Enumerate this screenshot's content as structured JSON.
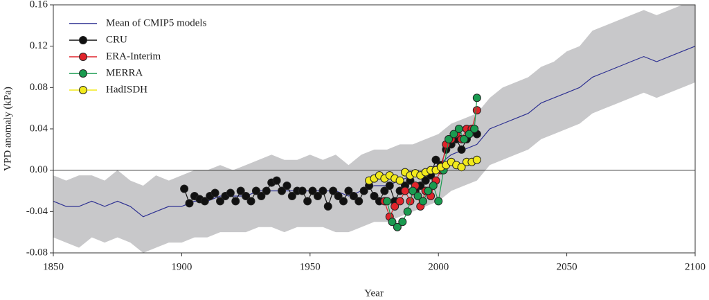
{
  "chart_data": {
    "type": "line",
    "xlabel": "Year",
    "ylabel": "VPD anomaly (kPa)",
    "xlim": [
      1850,
      2100
    ],
    "xticks": [
      1850,
      1900,
      1950,
      2000,
      2050,
      2100
    ],
    "ylim": [
      -0.08,
      0.16
    ],
    "yticks": [
      {
        "value": -0.08,
        "label": "-0.08"
      },
      {
        "value": -0.04,
        "label": "-0.04"
      },
      {
        "value": 0,
        "label": "0.00"
      },
      {
        "value": 0.04,
        "label": "0.04"
      },
      {
        "value": 0.08,
        "label": "0.08"
      },
      {
        "value": 0.12,
        "label": "0.12"
      },
      {
        "value": 0.16,
        "label": "0.16"
      }
    ],
    "hline": 0,
    "legend": "upper left",
    "band_color": "#c8c8ca",
    "series": [
      {
        "name": "Mean of CMIP5 models",
        "color": "#2e3192",
        "marker": false,
        "x": [
          1850,
          1855,
          1860,
          1865,
          1870,
          1875,
          1880,
          1885,
          1890,
          1895,
          1900,
          1905,
          1910,
          1915,
          1920,
          1925,
          1930,
          1935,
          1940,
          1945,
          1950,
          1955,
          1960,
          1965,
          1970,
          1975,
          1980,
          1985,
          1990,
          1995,
          2000,
          2005,
          2010,
          2015,
          2020,
          2025,
          2030,
          2035,
          2040,
          2045,
          2050,
          2055,
          2060,
          2065,
          2070,
          2075,
          2080,
          2085,
          2090,
          2095,
          2100
        ],
        "values": [
          -0.03,
          -0.035,
          -0.035,
          -0.03,
          -0.035,
          -0.03,
          -0.035,
          -0.045,
          -0.04,
          -0.035,
          -0.035,
          -0.03,
          -0.03,
          -0.025,
          -0.025,
          -0.025,
          -0.02,
          -0.02,
          -0.02,
          -0.02,
          -0.02,
          -0.02,
          -0.02,
          -0.025,
          -0.02,
          -0.015,
          -0.015,
          -0.01,
          -0.005,
          0.0,
          0.005,
          0.015,
          0.02,
          0.025,
          0.04,
          0.045,
          0.05,
          0.055,
          0.065,
          0.07,
          0.075,
          0.08,
          0.09,
          0.095,
          0.1,
          0.105,
          0.11,
          0.105,
          0.11,
          0.115,
          0.12
        ],
        "band_upper": [
          -0.005,
          -0.01,
          -0.005,
          -0.005,
          -0.01,
          0.0,
          -0.01,
          -0.015,
          -0.005,
          -0.01,
          -0.005,
          0.0,
          0.0,
          0.005,
          0.0,
          0.005,
          0.01,
          0.015,
          0.01,
          0.01,
          0.015,
          0.01,
          0.015,
          0.005,
          0.015,
          0.02,
          0.02,
          0.025,
          0.025,
          0.03,
          0.035,
          0.045,
          0.05,
          0.055,
          0.07,
          0.08,
          0.085,
          0.09,
          0.1,
          0.105,
          0.115,
          0.12,
          0.135,
          0.14,
          0.145,
          0.15,
          0.155,
          0.15,
          0.155,
          0.16,
          0.16
        ],
        "band_lower": [
          -0.065,
          -0.07,
          -0.075,
          -0.065,
          -0.07,
          -0.065,
          -0.07,
          -0.08,
          -0.075,
          -0.07,
          -0.07,
          -0.065,
          -0.065,
          -0.06,
          -0.06,
          -0.06,
          -0.055,
          -0.055,
          -0.06,
          -0.055,
          -0.055,
          -0.055,
          -0.06,
          -0.06,
          -0.055,
          -0.05,
          -0.05,
          -0.045,
          -0.04,
          -0.035,
          -0.03,
          -0.02,
          -0.015,
          -0.01,
          0.005,
          0.01,
          0.015,
          0.02,
          0.03,
          0.035,
          0.04,
          0.045,
          0.055,
          0.06,
          0.065,
          0.07,
          0.075,
          0.07,
          0.075,
          0.08,
          0.085
        ]
      },
      {
        "name": "CRU",
        "color": "#111111",
        "marker": true,
        "x": [
          1901,
          1903,
          1905,
          1907,
          1909,
          1911,
          1913,
          1915,
          1917,
          1919,
          1921,
          1923,
          1925,
          1927,
          1929,
          1931,
          1933,
          1935,
          1937,
          1939,
          1941,
          1943,
          1945,
          1947,
          1949,
          1951,
          1953,
          1955,
          1957,
          1959,
          1961,
          1963,
          1965,
          1967,
          1969,
          1971,
          1973,
          1975,
          1977,
          1979,
          1981,
          1983,
          1985,
          1987,
          1989,
          1991,
          1993,
          1995,
          1997,
          1999,
          2001,
          2003,
          2005,
          2007,
          2009,
          2011,
          2013,
          2015
        ],
        "values": [
          -0.018,
          -0.032,
          -0.025,
          -0.028,
          -0.03,
          -0.025,
          -0.022,
          -0.03,
          -0.025,
          -0.022,
          -0.03,
          -0.02,
          -0.025,
          -0.03,
          -0.02,
          -0.025,
          -0.02,
          -0.012,
          -0.01,
          -0.02,
          -0.015,
          -0.025,
          -0.02,
          -0.02,
          -0.03,
          -0.02,
          -0.025,
          -0.02,
          -0.035,
          -0.02,
          -0.025,
          -0.03,
          -0.02,
          -0.025,
          -0.03,
          -0.02,
          -0.015,
          -0.025,
          -0.03,
          -0.02,
          -0.015,
          -0.03,
          -0.02,
          -0.015,
          -0.01,
          -0.02,
          -0.015,
          -0.01,
          -0.005,
          0.01,
          0.005,
          0.02,
          0.025,
          0.03,
          0.02,
          0.03,
          0.04,
          0.035
        ]
      },
      {
        "name": "ERA-Interim",
        "color": "#e0242b",
        "marker": true,
        "x": [
          1979,
          1981,
          1983,
          1985,
          1987,
          1989,
          1991,
          1993,
          1995,
          1997,
          1999,
          2001,
          2003,
          2005,
          2007,
          2009,
          2011,
          2013,
          2015
        ],
        "values": [
          -0.03,
          -0.045,
          -0.035,
          -0.03,
          -0.02,
          -0.03,
          -0.015,
          -0.035,
          -0.02,
          -0.025,
          -0.01,
          0.0,
          0.025,
          0.03,
          0.035,
          0.03,
          0.04,
          0.04,
          0.058
        ]
      },
      {
        "name": "MERRA",
        "color": "#1a9b50",
        "marker": true,
        "x": [
          1980,
          1982,
          1984,
          1986,
          1988,
          1990,
          1992,
          1994,
          1996,
          1998,
          2000,
          2002,
          2004,
          2006,
          2008,
          2010,
          2012,
          2014,
          2015
        ],
        "values": [
          -0.03,
          -0.05,
          -0.055,
          -0.05,
          -0.04,
          -0.02,
          -0.025,
          -0.03,
          -0.02,
          -0.015,
          -0.03,
          0.0,
          0.03,
          0.035,
          0.04,
          0.03,
          0.035,
          0.04,
          0.07
        ]
      },
      {
        "name": "HadISDH",
        "color": "#f2ea1c",
        "marker": true,
        "x": [
          1973,
          1975,
          1977,
          1979,
          1981,
          1983,
          1985,
          1987,
          1989,
          1991,
          1993,
          1995,
          1997,
          1999,
          2001,
          2003,
          2005,
          2007,
          2009,
          2011,
          2013,
          2015
        ],
        "values": [
          -0.01,
          -0.008,
          -0.005,
          -0.008,
          -0.005,
          -0.008,
          -0.01,
          -0.002,
          -0.005,
          -0.003,
          -0.005,
          -0.002,
          0.0,
          0.0,
          0.003,
          0.005,
          0.008,
          0.005,
          0.003,
          0.008,
          0.008,
          0.01
        ]
      }
    ]
  }
}
